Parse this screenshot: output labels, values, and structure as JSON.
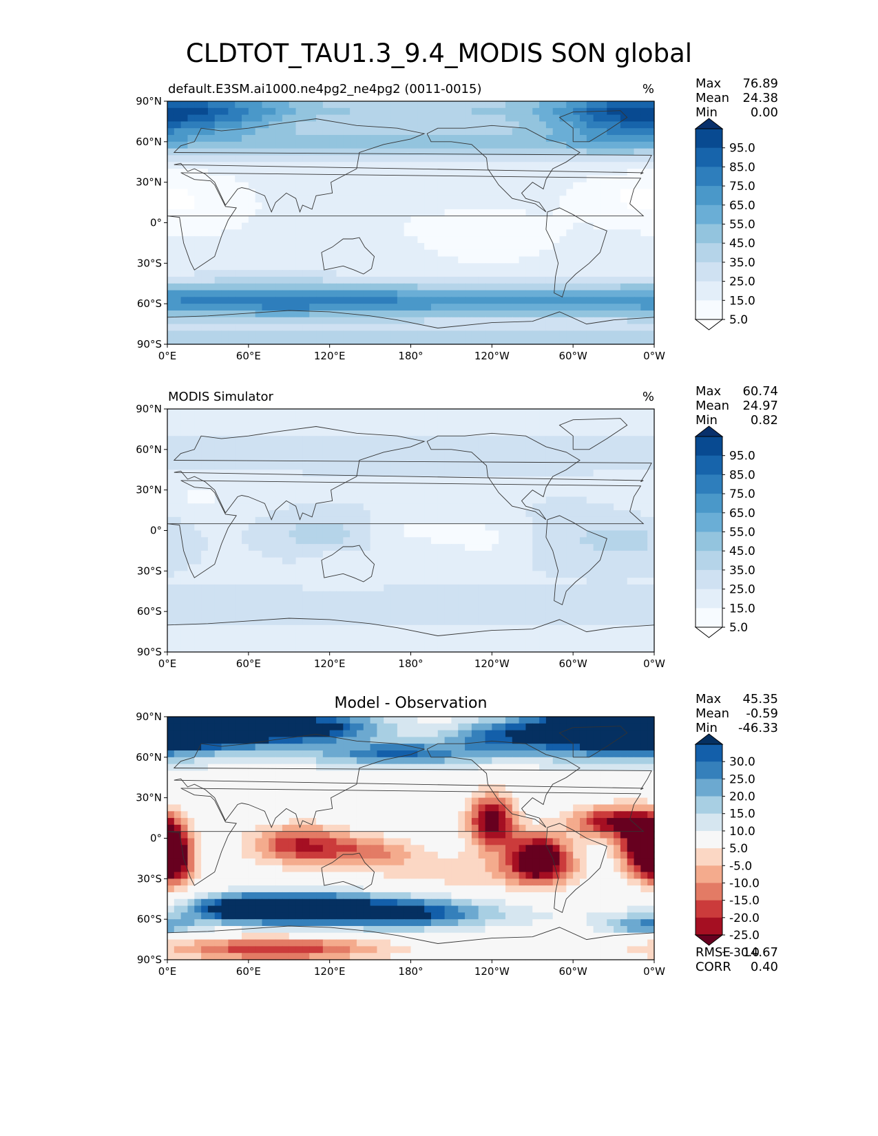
{
  "title": "CLDTOT_TAU1.3_9.4_MODIS SON global",
  "colors": {
    "seq_levels": [
      "#ffffff",
      "#f7fbff",
      "#e3eef9",
      "#cfe1f2",
      "#b5d4e9",
      "#93c4de",
      "#6aaed6",
      "#4a98c9",
      "#2e7ebc",
      "#1764ab",
      "#084a91",
      "#08306b"
    ],
    "div_levels": [
      "#67001f",
      "#a50f22",
      "#cb3b3b",
      "#e37b65",
      "#f4ab8d",
      "#fbd7c4",
      "#f7f7f7",
      "#d6e6f0",
      "#a8cfe3",
      "#6ca9d0",
      "#3580bb",
      "#135faa",
      "#053061"
    ],
    "coast": "#333333"
  },
  "axes": {
    "lat_ticks": [
      "90°N",
      "60°N",
      "30°N",
      "0°",
      "30°S",
      "60°S",
      "90°S"
    ],
    "lon_ticks": [
      "0°E",
      "60°E",
      "120°E",
      "180°",
      "120°W",
      "60°W",
      "0°W"
    ]
  },
  "panels": [
    {
      "title_left": "default.E3SM.ai1000.ne4pg2_ne4pg2 (0011-0015)",
      "title_center": "",
      "units": "%",
      "stats": [
        {
          "label": "Max",
          "value": "76.89"
        },
        {
          "label": "Mean",
          "value": "24.38"
        },
        {
          "label": "Min",
          "value": "0.00"
        }
      ],
      "colorbar_ticks": [
        "95.0",
        "85.0",
        "75.0",
        "65.0",
        "55.0",
        "45.0",
        "35.0",
        "25.0",
        "15.0",
        "5.0"
      ],
      "footer": []
    },
    {
      "title_left": "MODIS Simulator",
      "title_center": "",
      "units": "%",
      "stats": [
        {
          "label": "Max",
          "value": "60.74"
        },
        {
          "label": "Mean",
          "value": "24.97"
        },
        {
          "label": "Min",
          "value": "0.82"
        }
      ],
      "colorbar_ticks": [
        "95.0",
        "85.0",
        "75.0",
        "65.0",
        "55.0",
        "45.0",
        "35.0",
        "25.0",
        "15.0",
        "5.0"
      ],
      "footer": []
    },
    {
      "title_left": "",
      "title_center": "Model - Observation",
      "units": "",
      "stats": [
        {
          "label": "Max",
          "value": "45.35"
        },
        {
          "label": "Mean",
          "value": "-0.59"
        },
        {
          "label": "Min",
          "value": "-46.33"
        }
      ],
      "colorbar_ticks": [
        "30.0",
        "25.0",
        "20.0",
        "15.0",
        "10.0",
        "5.0",
        "-5.0",
        "-10.0",
        "-15.0",
        "-20.0",
        "-25.0",
        "-30.0"
      ],
      "footer": [
        {
          "label": "RMSE",
          "value": "14.67"
        },
        {
          "label": "CORR",
          "value": "0.40"
        }
      ]
    }
  ],
  "chart_data": [
    {
      "type": "heatmap",
      "title": "default.E3SM.ai1000.ne4pg2_ne4pg2 (0011-0015)",
      "units": "%",
      "x_range": [
        0,
        360
      ],
      "y_range": [
        -90,
        90
      ],
      "levels": [
        5,
        15,
        25,
        35,
        45,
        55,
        65,
        75,
        85,
        95
      ],
      "blobs": [
        {
          "lon": 30,
          "lat": 80,
          "slon": 45,
          "slat": 12,
          "value": 44
        },
        {
          "lon": 330,
          "lat": 78,
          "slon": 40,
          "slat": 14,
          "value": 42
        },
        {
          "lon": 200,
          "lat": 70,
          "slon": 90,
          "slat": 12,
          "value": 12
        },
        {
          "lon": 60,
          "lat": -57,
          "slon": 60,
          "slat": 10,
          "value": 30
        },
        {
          "lon": 160,
          "lat": -58,
          "slon": 70,
          "slat": 9,
          "value": 28
        },
        {
          "lon": 300,
          "lat": -58,
          "slon": 60,
          "slat": 9,
          "value": 22
        },
        {
          "lon": 20,
          "lat": 15,
          "slon": 35,
          "slat": 18,
          "value": -12
        },
        {
          "lon": 240,
          "lat": -15,
          "slon": 40,
          "slat": 15,
          "value": -8
        },
        {
          "lon": 335,
          "lat": 20,
          "slon": 30,
          "slat": 12,
          "value": -10
        },
        {
          "lon": 210,
          "lat": 0,
          "slon": 70,
          "slat": 12,
          "value": -4
        }
      ],
      "base": {
        "mid": 20,
        "midlat60": 40,
        "polar": 38
      }
    },
    {
      "type": "heatmap",
      "title": "MODIS Simulator",
      "units": "%",
      "x_range": [
        0,
        360
      ],
      "y_range": [
        -90,
        90
      ],
      "levels": [
        5,
        15,
        25,
        35,
        45,
        55,
        65,
        75,
        85,
        95
      ],
      "blobs": [
        {
          "lon": 115,
          "lat": -2,
          "slon": 25,
          "slat": 10,
          "value": 18
        },
        {
          "lon": 345,
          "lat": -8,
          "slon": 20,
          "slat": 12,
          "value": 12
        },
        {
          "lon": 300,
          "lat": -5,
          "slon": 25,
          "slat": 14,
          "value": 10
        },
        {
          "lon": 200,
          "lat": 0,
          "slon": 40,
          "slat": 8,
          "value": -12
        },
        {
          "lon": 25,
          "lat": 25,
          "slon": 30,
          "slat": 10,
          "value": -10
        },
        {
          "lon": 130,
          "lat": -25,
          "slon": 15,
          "slat": 8,
          "value": -10
        },
        {
          "lon": 235,
          "lat": -12,
          "slon": 22,
          "slat": 8,
          "value": -8
        }
      ],
      "base": {
        "mid": 24,
        "midlat60": 32,
        "polar": 18
      }
    },
    {
      "type": "heatmap",
      "title": "Model - Observation",
      "units": "",
      "x_range": [
        0,
        360
      ],
      "y_range": [
        -90,
        90
      ],
      "levels": [
        -30,
        -25,
        -20,
        -15,
        -10,
        -5,
        5,
        10,
        15,
        20,
        25,
        30
      ],
      "blobs": [
        {
          "lon": 30,
          "lat": 82,
          "slon": 60,
          "slat": 10,
          "value": 45
        },
        {
          "lon": 330,
          "lat": 80,
          "slon": 45,
          "slat": 12,
          "value": 42
        },
        {
          "lon": 110,
          "lat": 82,
          "slon": 40,
          "slat": 7,
          "value": 20
        },
        {
          "lon": 170,
          "lat": 63,
          "slon": 40,
          "slat": 6,
          "value": 22
        },
        {
          "lon": 245,
          "lat": 75,
          "slon": 30,
          "slat": 8,
          "value": 20
        },
        {
          "lon": 60,
          "lat": -52,
          "slon": 30,
          "slat": 7,
          "value": 38
        },
        {
          "lon": 170,
          "lat": -55,
          "slon": 45,
          "slat": 8,
          "value": 30
        },
        {
          "lon": 110,
          "lat": -50,
          "slon": 35,
          "slat": 8,
          "value": 22
        },
        {
          "lon": 352,
          "lat": -65,
          "slon": 20,
          "slat": 5,
          "value": 18
        },
        {
          "lon": 5,
          "lat": -15,
          "slon": 10,
          "slat": 14,
          "value": -35
        },
        {
          "lon": 98,
          "lat": -5,
          "slon": 25,
          "slat": 10,
          "value": -25
        },
        {
          "lon": 150,
          "lat": -10,
          "slon": 25,
          "slat": 8,
          "value": -15
        },
        {
          "lon": 240,
          "lat": 12,
          "slon": 12,
          "slat": 14,
          "value": -35
        },
        {
          "lon": 275,
          "lat": -15,
          "slon": 15,
          "slat": 12,
          "value": -42
        },
        {
          "lon": 330,
          "lat": 12,
          "slon": 22,
          "slat": 8,
          "value": -30
        },
        {
          "lon": 352,
          "lat": -5,
          "slon": 12,
          "slat": 14,
          "value": -38
        },
        {
          "lon": 80,
          "lat": -82,
          "slon": 55,
          "slat": 6,
          "value": -25
        },
        {
          "lon": 230,
          "lat": -25,
          "slon": 60,
          "slat": 10,
          "value": -8
        }
      ],
      "base": {
        "mid": 0,
        "midlat60": 4,
        "polar": 0
      }
    }
  ]
}
